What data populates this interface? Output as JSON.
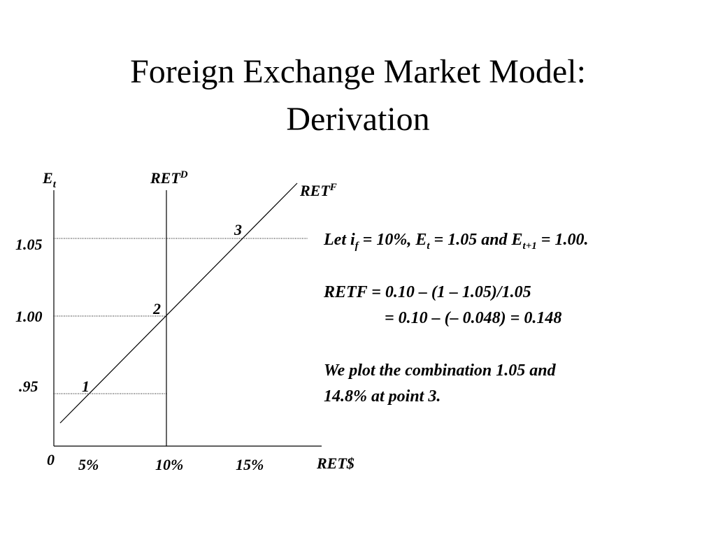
{
  "title": [
    "Foreign Exchange Market Model:",
    "Derivation"
  ],
  "diagram": {
    "y_axis": {
      "base": "E",
      "sub": "t"
    },
    "x_axis": "RET$",
    "origin": "0",
    "ret_d": {
      "base": "RET",
      "sup": "D"
    },
    "ret_f": {
      "base": "RET",
      "sup": "F"
    },
    "y_ticks": [
      "1.05",
      "1.00",
      ".95"
    ],
    "x_ticks": [
      "5%",
      "10%",
      "15%"
    ],
    "points": [
      "1",
      "2",
      "3"
    ]
  },
  "notes": {
    "let": [
      "Let i",
      "f",
      " = 10%, E",
      "t",
      " = 1.05 and E",
      "t+1",
      " = 1.00."
    ],
    "retf": [
      "RETF = 0.10 – (1 – 1.05)/1.05",
      "= 0.10 – (– 0.048) = 0.148"
    ],
    "plot": [
      "We plot the combination 1.05 and",
      "14.8% at  point 3."
    ]
  }
}
